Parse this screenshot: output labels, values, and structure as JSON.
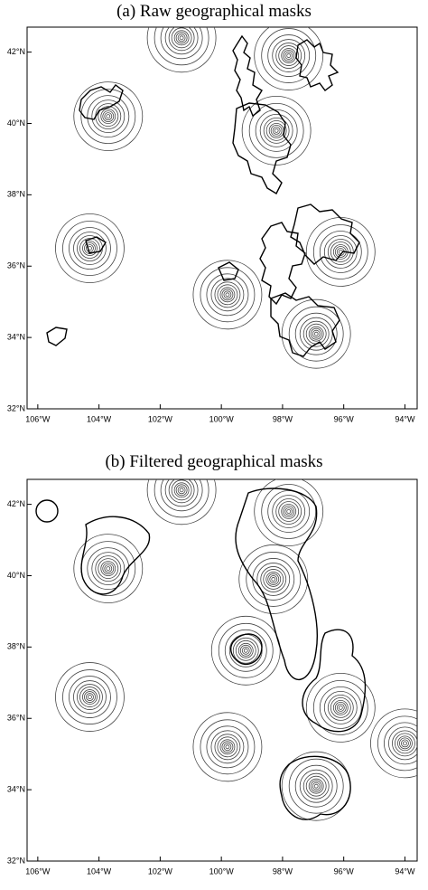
{
  "chart_data": [
    {
      "type": "contour",
      "title": "(a) Raw geographical masks",
      "x": [
        -101.3,
        -97.8,
        -103.7,
        -98.2,
        -104.3,
        -99.8,
        -96.1,
        -96.9
      ],
      "y": [
        42.4,
        41.9,
        40.2,
        39.8,
        36.5,
        35.2,
        36.4,
        34.1
      ],
      "xlim": [
        -106.35,
        -93.6
      ],
      "ylim": [
        32,
        42.7
      ],
      "xticks": [
        {
          "value": -106,
          "label": "106°W"
        },
        {
          "value": -104,
          "label": "104°W"
        },
        {
          "value": -102,
          "label": "102°W"
        },
        {
          "value": -100,
          "label": "100°W"
        },
        {
          "value": -98,
          "label": "98°W"
        },
        {
          "value": -96,
          "label": "96°W"
        },
        {
          "value": -94,
          "label": "94°W"
        }
      ],
      "yticks": [
        {
          "value": 32,
          "label": "32°N"
        },
        {
          "value": 34,
          "label": "34°N"
        },
        {
          "value": 36,
          "label": "36°N"
        },
        {
          "value": 38,
          "label": "38°N"
        },
        {
          "value": 40,
          "label": "40°N"
        },
        {
          "value": 42,
          "label": "42°N"
        }
      ],
      "color": "#444444"
    },
    {
      "type": "contour",
      "title": "(b) Filtered geographical masks",
      "x": [
        -101.3,
        -97.8,
        -103.7,
        -98.3,
        -99.2,
        -104.3,
        -96.1,
        -99.8,
        -94.0,
        -96.9
      ],
      "y": [
        42.4,
        41.8,
        40.2,
        39.9,
        37.9,
        36.6,
        36.3,
        35.2,
        35.3,
        34.1
      ],
      "xlim": [
        -106.35,
        -93.6
      ],
      "ylim": [
        32,
        42.7
      ],
      "xticks": [
        {
          "value": -106,
          "label": "106°W"
        },
        {
          "value": -104,
          "label": "104°W"
        },
        {
          "value": -102,
          "label": "102°W"
        },
        {
          "value": -100,
          "label": "100°W"
        },
        {
          "value": -98,
          "label": "98°W"
        },
        {
          "value": -96,
          "label": "96°W"
        },
        {
          "value": -94,
          "label": "94°W"
        }
      ],
      "yticks": [
        {
          "value": 32,
          "label": "32°N"
        },
        {
          "value": 34,
          "label": "34°N"
        },
        {
          "value": 36,
          "label": "36°N"
        },
        {
          "value": 38,
          "label": "38°N"
        },
        {
          "value": 40,
          "label": "40°N"
        },
        {
          "value": 42,
          "label": "42°N"
        }
      ],
      "color": "#444444"
    }
  ]
}
